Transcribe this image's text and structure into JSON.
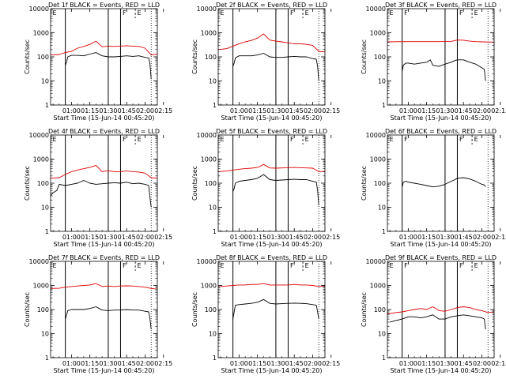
{
  "figure": {
    "background": "#ffffff",
    "colors": {
      "events": "#000000",
      "lld": "#dd0000",
      "axes": "#000000"
    },
    "ylabel": "Counts/sec",
    "xlabel": "Start Time (15-Jun-14 00:45:20)",
    "xticks": [
      "01:00",
      "01:15",
      "01:30",
      "01:45",
      "02:00",
      "02:15"
    ],
    "yticks": [
      "1",
      "10",
      "100",
      "1000",
      "10000"
    ],
    "marker_letters": {
      "entry": "E",
      "flare": "F"
    }
  },
  "chart_data": [
    {
      "type": "line",
      "title": "Det 1f BLACK = Events, RED = LLD",
      "ylog": true,
      "ylim": [
        1,
        10000
      ],
      "xlim_minutes": [
        43,
        130
      ],
      "series": [
        {
          "name": "Events",
          "color": "#000000",
          "x": [
            55,
            56,
            57,
            60,
            65,
            70,
            75,
            80,
            85,
            90,
            95,
            100,
            105,
            110,
            115,
            120,
            123,
            124,
            125
          ],
          "y": [
            45,
            60,
            100,
            115,
            115,
            110,
            130,
            150,
            110,
            100,
            100,
            105,
            110,
            105,
            110,
            95,
            90,
            50,
            12
          ]
        },
        {
          "name": "LLD",
          "color": "#dd0000",
          "x": [
            43,
            50,
            55,
            60,
            65,
            70,
            75,
            80,
            85,
            90,
            95,
            100,
            105,
            110,
            115,
            120,
            125,
            130
          ],
          "y": [
            120,
            125,
            150,
            170,
            230,
            270,
            330,
            450,
            260,
            280,
            270,
            280,
            290,
            280,
            270,
            230,
            120,
            130
          ]
        }
      ],
      "vlines_solid": [
        55,
        90,
        100
      ],
      "vlines_dotted": [
        125,
        130
      ],
      "vlines_dashed": [
        43,
        112
      ],
      "labels": [
        {
          "text": "E",
          "x": 44
        },
        {
          "text": "F",
          "x": 101
        },
        {
          "text": "E",
          "x": 113
        }
      ]
    },
    {
      "type": "line",
      "title": "Det 2f BLACK = Events, RED = LLD",
      "ylog": true,
      "ylim": [
        1,
        10000
      ],
      "xlim_minutes": [
        43,
        130
      ],
      "series": [
        {
          "name": "Events",
          "color": "#000000",
          "x": [
            55,
            56,
            57,
            60,
            65,
            70,
            75,
            80,
            85,
            90,
            95,
            100,
            105,
            110,
            115,
            120,
            123,
            124,
            125
          ],
          "y": [
            40,
            55,
            90,
            110,
            110,
            110,
            120,
            140,
            100,
            95,
            95,
            100,
            105,
            100,
            100,
            85,
            80,
            40,
            10
          ]
        },
        {
          "name": "LLD",
          "color": "#dd0000",
          "x": [
            43,
            50,
            55,
            60,
            65,
            70,
            75,
            80,
            85,
            90,
            95,
            100,
            105,
            110,
            115,
            120,
            125,
            130
          ],
          "y": [
            200,
            220,
            280,
            350,
            420,
            480,
            600,
            900,
            500,
            450,
            420,
            380,
            350,
            350,
            330,
            300,
            170,
            160
          ]
        }
      ],
      "vlines_solid": [
        55,
        90,
        100
      ],
      "vlines_dotted": [
        125,
        130
      ],
      "vlines_dashed": [
        43,
        112
      ],
      "labels": [
        {
          "text": "E",
          "x": 44
        },
        {
          "text": "F",
          "x": 101
        },
        {
          "text": "E",
          "x": 113
        }
      ]
    },
    {
      "type": "line",
      "title": "Det 3f BLACK = Events, RED = LLD",
      "ylog": true,
      "ylim": [
        1,
        10000
      ],
      "xlim_minutes": [
        43,
        130
      ],
      "series": [
        {
          "name": "Events",
          "color": "#000000",
          "x": [
            55,
            56,
            58,
            60,
            65,
            70,
            75,
            78,
            80,
            85,
            90,
            95,
            98,
            100,
            105,
            110,
            115,
            120,
            122,
            123
          ],
          "y": [
            25,
            45,
            55,
            55,
            50,
            55,
            60,
            75,
            45,
            40,
            50,
            60,
            70,
            75,
            75,
            60,
            50,
            35,
            30,
            10
          ]
        },
        {
          "name": "LLD",
          "color": "#dd0000",
          "x": [
            43,
            55,
            65,
            75,
            85,
            95,
            100,
            105,
            110,
            115,
            120,
            130
          ],
          "y": [
            420,
            430,
            430,
            430,
            430,
            440,
            500,
            490,
            450,
            430,
            420,
            410
          ]
        }
      ],
      "vlines_solid": [
        55,
        90,
        100
      ],
      "vlines_dotted": [
        125,
        130
      ],
      "vlines_dashed": [
        43,
        112
      ],
      "labels": [
        {
          "text": "E",
          "x": 44
        },
        {
          "text": "F",
          "x": 56
        },
        {
          "text": "F",
          "x": 101
        },
        {
          "text": "E",
          "x": 113
        }
      ]
    },
    {
      "type": "line",
      "title": "Det 4f BLACK = Events, RED = LLD",
      "ylog": true,
      "ylim": [
        1,
        10000
      ],
      "xlim_minutes": [
        43,
        130
      ],
      "series": [
        {
          "name": "Events",
          "color": "#000000",
          "x": [
            43,
            45,
            48,
            50,
            55,
            60,
            65,
            70,
            75,
            80,
            85,
            90,
            95,
            100,
            105,
            110,
            115,
            120,
            123,
            124,
            125
          ],
          "y": [
            30,
            40,
            50,
            90,
            80,
            90,
            100,
            130,
            100,
            90,
            95,
            100,
            105,
            100,
            110,
            95,
            100,
            90,
            80,
            25,
            10
          ]
        },
        {
          "name": "LLD",
          "color": "#dd0000",
          "x": [
            43,
            50,
            55,
            60,
            65,
            70,
            75,
            80,
            85,
            90,
            95,
            100,
            105,
            110,
            115,
            120,
            125,
            130
          ],
          "y": [
            160,
            170,
            230,
            300,
            350,
            400,
            450,
            550,
            300,
            330,
            300,
            300,
            320,
            300,
            290,
            260,
            170,
            160
          ]
        }
      ],
      "vlines_solid": [
        55,
        90,
        100
      ],
      "vlines_dotted": [
        125,
        130
      ],
      "vlines_dashed": [
        43,
        112
      ],
      "labels": [
        {
          "text": "E",
          "x": 44
        },
        {
          "text": "F",
          "x": 101
        },
        {
          "text": "E",
          "x": 113
        }
      ]
    },
    {
      "type": "line",
      "title": "Det 5f BLACK = Events, RED = LLD",
      "ylog": true,
      "ylim": [
        1,
        10000
      ],
      "xlim_minutes": [
        43,
        130
      ],
      "series": [
        {
          "name": "Events",
          "color": "#000000",
          "x": [
            55,
            56,
            57,
            60,
            65,
            70,
            75,
            80,
            85,
            90,
            95,
            100,
            105,
            110,
            115,
            120,
            123,
            124,
            125
          ],
          "y": [
            45,
            60,
            100,
            120,
            130,
            140,
            160,
            230,
            140,
            130,
            135,
            140,
            145,
            140,
            140,
            120,
            110,
            50,
            12
          ]
        },
        {
          "name": "LLD",
          "color": "#dd0000",
          "x": [
            43,
            50,
            55,
            60,
            65,
            70,
            75,
            80,
            85,
            90,
            95,
            100,
            105,
            110,
            115,
            120,
            125,
            130
          ],
          "y": [
            300,
            320,
            350,
            380,
            400,
            420,
            450,
            600,
            430,
            420,
            430,
            440,
            450,
            440,
            430,
            420,
            300,
            310
          ]
        }
      ],
      "vlines_solid": [
        55,
        90,
        100
      ],
      "vlines_dotted": [
        125,
        130
      ],
      "vlines_dashed": [
        43,
        112
      ],
      "labels": [
        {
          "text": "E",
          "x": 44
        },
        {
          "text": "F",
          "x": 101
        },
        {
          "text": "E",
          "x": 113
        }
      ]
    },
    {
      "type": "line",
      "title": "Det 6f BLACK = Events, RED = LLD",
      "ylog": true,
      "ylim": [
        1,
        10000
      ],
      "xlim_minutes": [
        43,
        130
      ],
      "series": [
        {
          "name": "Events",
          "color": "#000000",
          "x": [
            55,
            56,
            58,
            60,
            65,
            70,
            75,
            80,
            85,
            90,
            95,
            98,
            100,
            105,
            110,
            115,
            118,
            120,
            122,
            123
          ],
          "y": [
            70,
            110,
            120,
            110,
            100,
            90,
            80,
            70,
            75,
            90,
            120,
            140,
            160,
            170,
            150,
            120,
            100,
            90,
            85,
            70
          ]
        }
      ],
      "vlines_solid": [
        55,
        90,
        100
      ],
      "vlines_dotted": [
        125,
        130
      ],
      "vlines_dashed": [
        43,
        112
      ],
      "labels": [
        {
          "text": "E",
          "x": 44
        },
        {
          "text": "F",
          "x": 56
        },
        {
          "text": "F",
          "x": 101
        },
        {
          "text": "E",
          "x": 113
        }
      ]
    },
    {
      "type": "line",
      "title": "Det 7f BLACK = Events, RED = LLD",
      "ylog": true,
      "ylim": [
        1,
        10000
      ],
      "xlim_minutes": [
        43,
        130
      ],
      "series": [
        {
          "name": "Events",
          "color": "#000000",
          "x": [
            55,
            56,
            57,
            60,
            65,
            70,
            75,
            80,
            85,
            90,
            95,
            100,
            105,
            110,
            115,
            120,
            123,
            124,
            125
          ],
          "y": [
            40,
            60,
            90,
            100,
            100,
            100,
            110,
            130,
            95,
            90,
            95,
            95,
            100,
            95,
            95,
            85,
            80,
            40,
            15
          ]
        },
        {
          "name": "LLD",
          "color": "#dd0000",
          "x": [
            43,
            50,
            55,
            60,
            65,
            70,
            75,
            80,
            85,
            90,
            95,
            100,
            105,
            110,
            115,
            120,
            125,
            130
          ],
          "y": [
            750,
            760,
            850,
            900,
            950,
            1000,
            1050,
            1200,
            900,
            950,
            900,
            950,
            960,
            950,
            900,
            850,
            750,
            700
          ]
        }
      ],
      "vlines_solid": [
        55,
        90,
        100
      ],
      "vlines_dotted": [
        125,
        130
      ],
      "vlines_dashed": [
        43,
        112
      ],
      "labels": [
        {
          "text": "E",
          "x": 44
        },
        {
          "text": "F",
          "x": 101
        },
        {
          "text": "E",
          "x": 113
        }
      ]
    },
    {
      "type": "line",
      "title": "Det 8f BLACK = Events, RED = LLD",
      "ylog": true,
      "ylim": [
        1,
        10000
      ],
      "xlim_minutes": [
        43,
        130
      ],
      "series": [
        {
          "name": "Events",
          "color": "#000000",
          "x": [
            55,
            56,
            57,
            60,
            65,
            70,
            75,
            80,
            85,
            90,
            95,
            100,
            105,
            110,
            115,
            120,
            123,
            124,
            125
          ],
          "y": [
            40,
            80,
            150,
            160,
            170,
            180,
            200,
            260,
            180,
            170,
            175,
            180,
            185,
            180,
            175,
            160,
            150,
            80,
            40
          ]
        },
        {
          "name": "LLD",
          "color": "#dd0000",
          "x": [
            43,
            50,
            55,
            60,
            65,
            70,
            75,
            80,
            85,
            90,
            95,
            100,
            105,
            110,
            115,
            120,
            125,
            130
          ],
          "y": [
            900,
            950,
            1000,
            1050,
            1050,
            1100,
            1100,
            1200,
            1050,
            1050,
            1050,
            1050,
            1100,
            1050,
            1050,
            1000,
            900,
            950
          ]
        }
      ],
      "vlines_solid": [
        55,
        90,
        100
      ],
      "vlines_dotted": [
        125,
        130
      ],
      "vlines_dashed": [
        43,
        112
      ],
      "labels": [
        {
          "text": "E",
          "x": 44
        },
        {
          "text": "F",
          "x": 101
        },
        {
          "text": "E",
          "x": 113
        }
      ]
    },
    {
      "type": "line",
      "title": "Det 9f BLACK = Events, RED = LLD",
      "ylog": true,
      "ylim": [
        1,
        10000
      ],
      "xlim_minutes": [
        43,
        130
      ],
      "series": [
        {
          "name": "Events",
          "color": "#000000",
          "x": [
            45,
            50,
            55,
            60,
            65,
            70,
            75,
            80,
            85,
            90,
            95,
            100,
            105,
            110,
            115,
            120,
            122,
            123
          ],
          "y": [
            30,
            35,
            40,
            50,
            50,
            45,
            50,
            60,
            40,
            40,
            50,
            55,
            60,
            55,
            50,
            45,
            40,
            15
          ]
        },
        {
          "name": "LLD",
          "color": "#dd0000",
          "x": [
            43,
            50,
            55,
            60,
            65,
            70,
            75,
            80,
            85,
            90,
            95,
            100,
            105,
            110,
            115,
            120,
            125,
            130
          ],
          "y": [
            65,
            75,
            80,
            90,
            100,
            110,
            100,
            130,
            90,
            85,
            100,
            120,
            130,
            120,
            100,
            90,
            75,
            80
          ]
        }
      ],
      "vlines_solid": [
        55,
        90,
        100
      ],
      "vlines_dotted": [
        125,
        130
      ],
      "vlines_dashed": [
        43,
        112
      ],
      "labels": [
        {
          "text": "E",
          "x": 44
        },
        {
          "text": "F",
          "x": 56
        },
        {
          "text": "F",
          "x": 101
        },
        {
          "text": "E",
          "x": 113
        }
      ]
    }
  ]
}
